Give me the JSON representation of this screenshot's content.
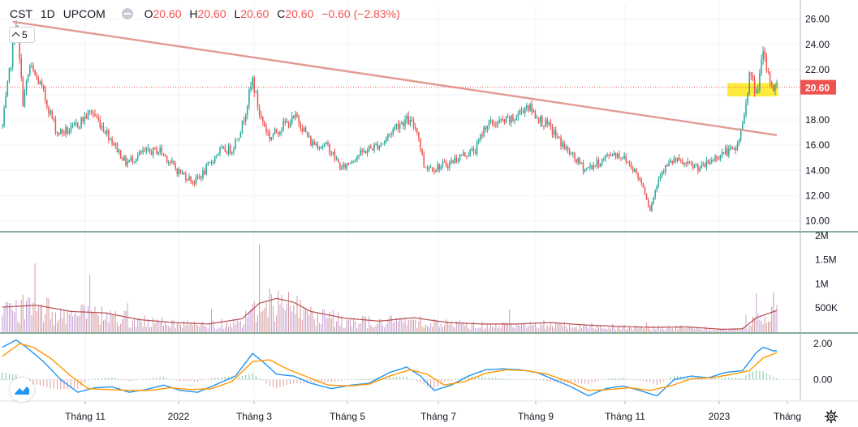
{
  "header": {
    "symbol": "CST",
    "interval": "1D",
    "exchange": "UPCOM",
    "o_label": "O",
    "o": "20.60",
    "h_label": "H",
    "h": "20.60",
    "l_label": "L",
    "l": "20.60",
    "c_label": "C",
    "c": "20.60",
    "change": "−0.60 (−2.83%)"
  },
  "collapse_button": {
    "count": "5"
  },
  "price_label": "20.60",
  "colors": {
    "up": "#26a69a",
    "down": "#ef5350",
    "trendline": "#e29a94",
    "highlight": "#ffeb3b",
    "macd": "#2196f3",
    "signal": "#ff9800",
    "volume_ma": "#b84c4c",
    "axis_text": "#131722",
    "pane_border": "#3a7d5a"
  },
  "chart_data": [
    {
      "type": "candlestick",
      "pane": "price",
      "y_ticks": [
        "26.00",
        "24.00",
        "22.00",
        "20.00",
        "18.00",
        "16.00",
        "14.00",
        "12.00",
        "10.00"
      ],
      "ylim": [
        9.2,
        27.2
      ],
      "x_ticks": [
        "Tháng 11",
        "2022",
        "Tháng 3",
        "Tháng 5",
        "Tháng 7",
        "Tháng 9",
        "Tháng 11",
        "2023",
        "Tháng"
      ],
      "anchors": [
        [
          0,
          17.5
        ],
        [
          8,
          25.8
        ],
        [
          12,
          19.5
        ],
        [
          16,
          22.2
        ],
        [
          22,
          20.8
        ],
        [
          32,
          17.0
        ],
        [
          40,
          17.2
        ],
        [
          52,
          18.7
        ],
        [
          62,
          16.8
        ],
        [
          72,
          14.6
        ],
        [
          82,
          15.4
        ],
        [
          92,
          15.6
        ],
        [
          102,
          14.0
        ],
        [
          112,
          13.1
        ],
        [
          118,
          13.9
        ],
        [
          126,
          15.5
        ],
        [
          134,
          15.7
        ],
        [
          140,
          17.6
        ],
        [
          146,
          21.2
        ],
        [
          150,
          18.5
        ],
        [
          156,
          16.6
        ],
        [
          164,
          17.6
        ],
        [
          172,
          18.2
        ],
        [
          180,
          16.2
        ],
        [
          190,
          15.9
        ],
        [
          198,
          14.1
        ],
        [
          206,
          15.1
        ],
        [
          214,
          15.7
        ],
        [
          222,
          16.2
        ],
        [
          230,
          17.6
        ],
        [
          236,
          18.0
        ],
        [
          242,
          17.3
        ],
        [
          246,
          14.4
        ],
        [
          252,
          14.2
        ],
        [
          260,
          14.5
        ],
        [
          268,
          15.2
        ],
        [
          276,
          15.6
        ],
        [
          282,
          17.6
        ],
        [
          290,
          17.8
        ],
        [
          298,
          18.0
        ],
        [
          306,
          19.2
        ],
        [
          314,
          18.0
        ],
        [
          320,
          17.3
        ],
        [
          330,
          15.5
        ],
        [
          340,
          14.1
        ],
        [
          348,
          14.6
        ],
        [
          356,
          15.4
        ],
        [
          362,
          15.1
        ],
        [
          368,
          14.2
        ],
        [
          374,
          12.8
        ],
        [
          378,
          10.9
        ],
        [
          384,
          13.9
        ],
        [
          392,
          14.8
        ],
        [
          400,
          14.4
        ],
        [
          408,
          14.2
        ],
        [
          416,
          15.0
        ],
        [
          422,
          15.5
        ],
        [
          428,
          15.6
        ],
        [
          432,
          17.6
        ],
        [
          434,
          19.5
        ],
        [
          436,
          21.6
        ],
        [
          440,
          20.1
        ],
        [
          444,
          23.1
        ],
        [
          447,
          21.5
        ],
        [
          450,
          20.6
        ]
      ],
      "last_price": 20.6,
      "trendline": {
        "from": [
          6,
          25.8
        ],
        "to": [
          452,
          16.8
        ]
      },
      "highlight_zone": {
        "x_range": [
          426,
          450
        ],
        "y_range": [
          20.0,
          21.0
        ]
      }
    },
    {
      "type": "bar",
      "pane": "volume",
      "y_ticks": [
        "2M",
        "1.5M",
        "1M",
        "500K"
      ],
      "ylim": [
        0,
        2050000
      ],
      "moving_average": [
        [
          0,
          520000
        ],
        [
          20,
          560000
        ],
        [
          40,
          430000
        ],
        [
          60,
          400000
        ],
        [
          80,
          260000
        ],
        [
          100,
          200000
        ],
        [
          120,
          170000
        ],
        [
          140,
          280000
        ],
        [
          150,
          600000
        ],
        [
          160,
          700000
        ],
        [
          170,
          620000
        ],
        [
          180,
          430000
        ],
        [
          200,
          290000
        ],
        [
          220,
          230000
        ],
        [
          240,
          300000
        ],
        [
          260,
          200000
        ],
        [
          280,
          170000
        ],
        [
          300,
          170000
        ],
        [
          320,
          200000
        ],
        [
          340,
          150000
        ],
        [
          360,
          120000
        ],
        [
          380,
          100000
        ],
        [
          400,
          110000
        ],
        [
          420,
          60000
        ],
        [
          432,
          70000
        ],
        [
          440,
          300000
        ],
        [
          452,
          450000
        ]
      ]
    },
    {
      "type": "line",
      "pane": "macd",
      "y_ticks": [
        "2.00",
        "0.00"
      ],
      "ylim": [
        -1.1,
        2.5
      ],
      "series": [
        {
          "role": "macd",
          "points": [
            [
              0,
              1.8
            ],
            [
              8,
              2.2
            ],
            [
              14,
              1.8
            ],
            [
              24,
              1.0
            ],
            [
              34,
              0.0
            ],
            [
              44,
              -0.7
            ],
            [
              54,
              -0.45
            ],
            [
              64,
              -0.4
            ],
            [
              74,
              -0.7
            ],
            [
              84,
              -0.55
            ],
            [
              94,
              -0.3
            ],
            [
              104,
              -0.6
            ],
            [
              114,
              -0.7
            ],
            [
              124,
              -0.3
            ],
            [
              136,
              0.2
            ],
            [
              146,
              1.45
            ],
            [
              152,
              1.0
            ],
            [
              160,
              0.3
            ],
            [
              170,
              0.2
            ],
            [
              180,
              -0.2
            ],
            [
              192,
              -0.5
            ],
            [
              204,
              -0.3
            ],
            [
              214,
              -0.2
            ],
            [
              226,
              0.4
            ],
            [
              236,
              0.7
            ],
            [
              244,
              0.2
            ],
            [
              252,
              -0.6
            ],
            [
              262,
              -0.3
            ],
            [
              272,
              0.2
            ],
            [
              282,
              0.55
            ],
            [
              292,
              0.6
            ],
            [
              302,
              0.55
            ],
            [
              312,
              0.4
            ],
            [
              322,
              0.0
            ],
            [
              332,
              -0.4
            ],
            [
              342,
              -0.9
            ],
            [
              352,
              -0.5
            ],
            [
              362,
              -0.35
            ],
            [
              372,
              -0.6
            ],
            [
              382,
              -0.9
            ],
            [
              392,
              0.0
            ],
            [
              402,
              0.2
            ],
            [
              412,
              0.1
            ],
            [
              422,
              0.4
            ],
            [
              432,
              0.5
            ],
            [
              440,
              1.5
            ],
            [
              444,
              1.8
            ],
            [
              450,
              1.6
            ]
          ]
        },
        {
          "role": "signal",
          "points": [
            [
              0,
              1.3
            ],
            [
              10,
              2.0
            ],
            [
              18,
              1.8
            ],
            [
              28,
              1.2
            ],
            [
              40,
              0.2
            ],
            [
              50,
              -0.5
            ],
            [
              62,
              -0.55
            ],
            [
              74,
              -0.6
            ],
            [
              86,
              -0.6
            ],
            [
              98,
              -0.45
            ],
            [
              110,
              -0.55
            ],
            [
              122,
              -0.5
            ],
            [
              134,
              -0.1
            ],
            [
              146,
              1.0
            ],
            [
              156,
              1.1
            ],
            [
              166,
              0.6
            ],
            [
              178,
              0.15
            ],
            [
              190,
              -0.3
            ],
            [
              202,
              -0.35
            ],
            [
              214,
              -0.25
            ],
            [
              226,
              0.2
            ],
            [
              238,
              0.55
            ],
            [
              248,
              0.3
            ],
            [
              258,
              -0.3
            ],
            [
              270,
              -0.1
            ],
            [
              282,
              0.35
            ],
            [
              294,
              0.55
            ],
            [
              306,
              0.5
            ],
            [
              318,
              0.3
            ],
            [
              330,
              -0.1
            ],
            [
              342,
              -0.6
            ],
            [
              354,
              -0.55
            ],
            [
              366,
              -0.45
            ],
            [
              378,
              -0.6
            ],
            [
              390,
              -0.35
            ],
            [
              402,
              0.05
            ],
            [
              414,
              0.1
            ],
            [
              426,
              0.3
            ],
            [
              436,
              0.5
            ],
            [
              444,
              1.2
            ],
            [
              452,
              1.5
            ]
          ]
        }
      ]
    }
  ]
}
